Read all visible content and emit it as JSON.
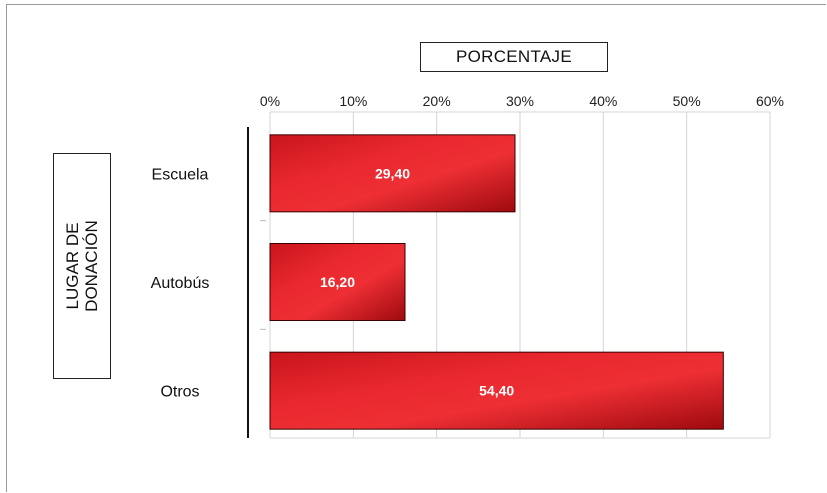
{
  "chart_data": {
    "type": "bar",
    "orientation": "horizontal",
    "categories": [
      "Escuela",
      "Autobús",
      "Otros"
    ],
    "values": [
      29.4,
      16.2,
      54.4
    ],
    "value_labels": [
      "29,40",
      "16,20",
      "54,40"
    ],
    "xlabel": "PORCENTAJE",
    "ylabel": "LUGAR DE\nDONACIÓN",
    "title": "",
    "xlim": [
      0,
      60
    ],
    "xticks": [
      0,
      10,
      20,
      30,
      40,
      50,
      60
    ],
    "xtick_labels": [
      "0%",
      "10%",
      "20%",
      "30%",
      "40%",
      "50%",
      "60%"
    ],
    "grid": true,
    "axis_position": "top",
    "bar_color": "#e3242b",
    "bar_color_dark": "#9e0a0f"
  }
}
